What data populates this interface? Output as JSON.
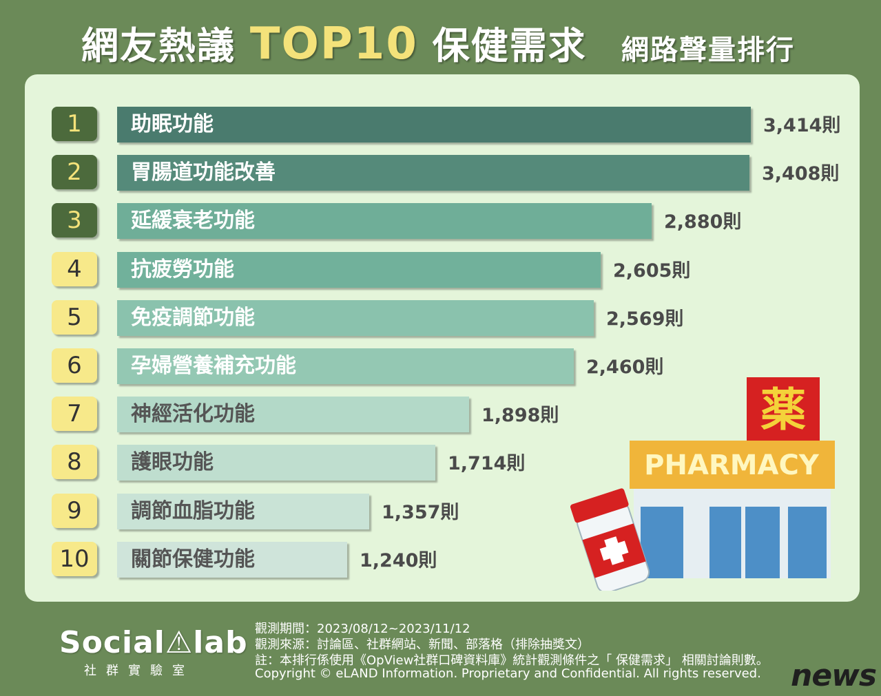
{
  "title": {
    "part1": "網友熱議",
    "highlight": "TOP10",
    "part2": "保健需求",
    "subtitle": "網路聲量排行"
  },
  "chart_data": {
    "type": "bar",
    "orientation": "horizontal",
    "unit": "則",
    "categories": [
      "助眠功能",
      "胃腸道功能改善",
      "延緩衰老功能",
      "抗疲勞功能",
      "免疫調節功能",
      "孕婦營養補充功能",
      "神經活化功能",
      "護眼功能",
      "調節血脂功能",
      "關節保健功能"
    ],
    "values": [
      3414,
      3408,
      2880,
      2605,
      2569,
      2460,
      1898,
      1714,
      1357,
      1240
    ],
    "value_labels": [
      "3,414則",
      "3,408則",
      "2,880則",
      "2,605則",
      "2,569則",
      "2,460則",
      "1,898則",
      "1,714則",
      "1,357則",
      "1,240則"
    ],
    "ranks": [
      "1",
      "2",
      "3",
      "4",
      "5",
      "6",
      "7",
      "8",
      "9",
      "10"
    ],
    "colors": [
      "#4a7b6e",
      "#558a7a",
      "#6fae98",
      "#71b19b",
      "#8ac2ad",
      "#94c8b3",
      "#b3d9c8",
      "#bfdecf",
      "#c9e3d6",
      "#cfe4da"
    ],
    "label_colors": [
      "#ffffff",
      "#ffffff",
      "#ffffff",
      "#ffffff",
      "#ffffff",
      "#ffffff",
      "#555555",
      "#555555",
      "#555555",
      "#555555"
    ],
    "rank_styles": [
      "dark",
      "dark",
      "dark",
      "light",
      "light",
      "light",
      "light",
      "light",
      "light",
      "light"
    ]
  },
  "illustration": {
    "sign_char": "薬",
    "sign_text": "PHARMACY"
  },
  "footer": {
    "logo": "Social⚠lab",
    "logo_sub": "社群實驗室",
    "period": "觀測期間：2023/08/12~2023/11/12",
    "source": "觀測來源：討論區、社群網站、新聞、部落格（排除抽獎文）",
    "note": "註：本排行係使用《OpView社群口碑資料庫》統計觀測條件之「 保健需求」 相關討論則數。",
    "copyright": "Copyright © eLAND Information. Proprietary and Confidential. All rights reserved."
  },
  "watermark": "news"
}
